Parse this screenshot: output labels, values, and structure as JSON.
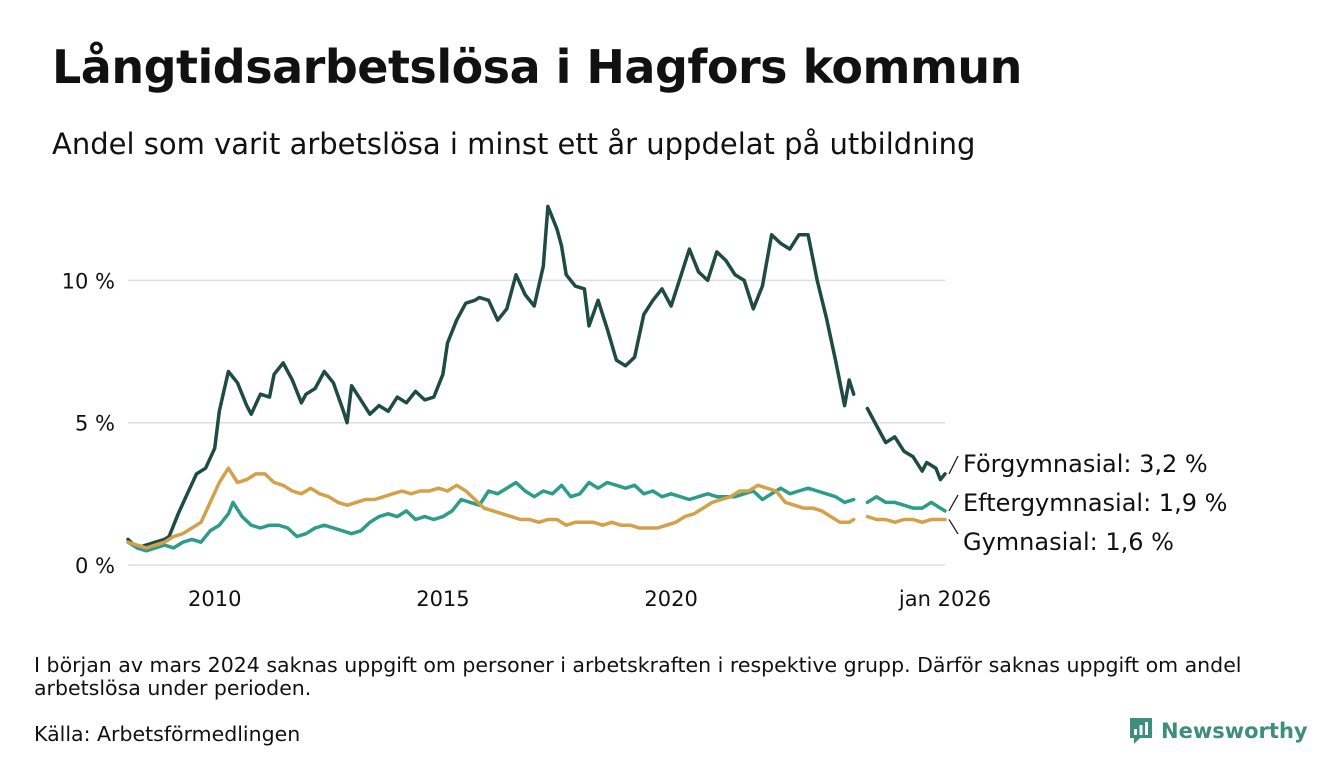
{
  "header": {
    "title": "Långtidsarbetslösa i Hagfors kommun",
    "subtitle": "Andel som varit arbetslösa i minst ett år uppdelat på utbildning"
  },
  "footer": {
    "note": "I början av mars 2024 saknas uppgift om personer i arbetskraften i respektive grupp. Därför saknas uppgift om andel arbetslösa under perioden.",
    "source": "Källa: Arbetsförmedlingen",
    "logo_text": "Newsworthy"
  },
  "chart_data": {
    "type": "line",
    "title": "Långtidsarbetslösa i Hagfors kommun",
    "subtitle": "Andel som varit arbetslösa i minst ett år uppdelat på utbildning",
    "xlabel": "",
    "ylabel": "",
    "xlim": [
      2008.1,
      2026.0
    ],
    "ylim": [
      0,
      13
    ],
    "yticks": [
      {
        "value": 0,
        "label": "0 %"
      },
      {
        "value": 5,
        "label": "5 %"
      },
      {
        "value": 10,
        "label": "10 %"
      }
    ],
    "xticks": [
      {
        "value": 2010,
        "label": "2010"
      },
      {
        "value": 2015,
        "label": "2015"
      },
      {
        "value": 2020,
        "label": "2020"
      },
      {
        "value": 2026.0,
        "label": "jan 2026"
      }
    ],
    "grid": true,
    "gap": {
      "from": 2024.0,
      "to": 2024.2
    },
    "series": [
      {
        "name": "Förgymnasial",
        "label": "Förgymnasial: 3,2 %",
        "color": "#1f4b45",
        "points": [
          [
            2008.1,
            0.9
          ],
          [
            2008.3,
            0.6
          ],
          [
            2008.5,
            0.7
          ],
          [
            2008.7,
            0.8
          ],
          [
            2008.9,
            0.9
          ],
          [
            2009.0,
            1.0
          ],
          [
            2009.2,
            1.8
          ],
          [
            2009.4,
            2.5
          ],
          [
            2009.6,
            3.2
          ],
          [
            2009.8,
            3.4
          ],
          [
            2010.0,
            4.1
          ],
          [
            2010.1,
            5.4
          ],
          [
            2010.2,
            6.1
          ],
          [
            2010.3,
            6.8
          ],
          [
            2010.5,
            6.4
          ],
          [
            2010.7,
            5.6
          ],
          [
            2010.8,
            5.3
          ],
          [
            2011.0,
            6.0
          ],
          [
            2011.2,
            5.9
          ],
          [
            2011.3,
            6.7
          ],
          [
            2011.5,
            7.1
          ],
          [
            2011.7,
            6.5
          ],
          [
            2011.9,
            5.7
          ],
          [
            2012.0,
            6.0
          ],
          [
            2012.2,
            6.2
          ],
          [
            2012.4,
            6.8
          ],
          [
            2012.6,
            6.4
          ],
          [
            2012.8,
            5.5
          ],
          [
            2012.9,
            5.0
          ],
          [
            2013.0,
            6.3
          ],
          [
            2013.2,
            5.8
          ],
          [
            2013.4,
            5.3
          ],
          [
            2013.6,
            5.6
          ],
          [
            2013.8,
            5.4
          ],
          [
            2014.0,
            5.9
          ],
          [
            2014.2,
            5.7
          ],
          [
            2014.4,
            6.1
          ],
          [
            2014.6,
            5.8
          ],
          [
            2014.8,
            5.9
          ],
          [
            2015.0,
            6.7
          ],
          [
            2015.1,
            7.8
          ],
          [
            2015.3,
            8.6
          ],
          [
            2015.5,
            9.2
          ],
          [
            2015.7,
            9.3
          ],
          [
            2015.8,
            9.4
          ],
          [
            2016.0,
            9.3
          ],
          [
            2016.2,
            8.6
          ],
          [
            2016.4,
            9.0
          ],
          [
            2016.6,
            10.2
          ],
          [
            2016.8,
            9.5
          ],
          [
            2017.0,
            9.1
          ],
          [
            2017.2,
            10.5
          ],
          [
            2017.3,
            12.6
          ],
          [
            2017.5,
            11.8
          ],
          [
            2017.6,
            11.2
          ],
          [
            2017.7,
            10.2
          ],
          [
            2017.9,
            9.8
          ],
          [
            2018.1,
            9.7
          ],
          [
            2018.2,
            8.4
          ],
          [
            2018.4,
            9.3
          ],
          [
            2018.6,
            8.3
          ],
          [
            2018.8,
            7.2
          ],
          [
            2019.0,
            7.0
          ],
          [
            2019.2,
            7.3
          ],
          [
            2019.4,
            8.8
          ],
          [
            2019.6,
            9.3
          ],
          [
            2019.8,
            9.7
          ],
          [
            2020.0,
            9.1
          ],
          [
            2020.2,
            10.1
          ],
          [
            2020.4,
            11.1
          ],
          [
            2020.6,
            10.3
          ],
          [
            2020.8,
            10.0
          ],
          [
            2021.0,
            11.0
          ],
          [
            2021.2,
            10.7
          ],
          [
            2021.4,
            10.2
          ],
          [
            2021.6,
            10.0
          ],
          [
            2021.8,
            9.0
          ],
          [
            2022.0,
            9.8
          ],
          [
            2022.2,
            11.6
          ],
          [
            2022.4,
            11.3
          ],
          [
            2022.6,
            11.1
          ],
          [
            2022.8,
            11.6
          ],
          [
            2023.0,
            11.6
          ],
          [
            2023.2,
            10.0
          ],
          [
            2023.4,
            8.7
          ],
          [
            2023.6,
            7.2
          ],
          [
            2023.8,
            5.6
          ],
          [
            2023.9,
            6.5
          ],
          [
            2024.0,
            6.0
          ],
          [
            2024.3,
            5.5
          ],
          [
            2024.5,
            4.9
          ],
          [
            2024.7,
            4.3
          ],
          [
            2024.9,
            4.5
          ],
          [
            2025.1,
            4.0
          ],
          [
            2025.3,
            3.8
          ],
          [
            2025.5,
            3.3
          ],
          [
            2025.6,
            3.6
          ],
          [
            2025.8,
            3.4
          ],
          [
            2025.9,
            3.0
          ],
          [
            2026.0,
            3.2
          ]
        ]
      },
      {
        "name": "Eftergymnasial",
        "label": "Eftergymnasial: 1,9 %",
        "color": "#2e9c8a",
        "points": [
          [
            2008.1,
            0.8
          ],
          [
            2008.3,
            0.6
          ],
          [
            2008.5,
            0.5
          ],
          [
            2008.7,
            0.6
          ],
          [
            2008.9,
            0.7
          ],
          [
            2009.1,
            0.6
          ],
          [
            2009.3,
            0.8
          ],
          [
            2009.5,
            0.9
          ],
          [
            2009.7,
            0.8
          ],
          [
            2009.9,
            1.2
          ],
          [
            2010.1,
            1.4
          ],
          [
            2010.3,
            1.8
          ],
          [
            2010.4,
            2.2
          ],
          [
            2010.6,
            1.7
          ],
          [
            2010.8,
            1.4
          ],
          [
            2011.0,
            1.3
          ],
          [
            2011.2,
            1.4
          ],
          [
            2011.4,
            1.4
          ],
          [
            2011.6,
            1.3
          ],
          [
            2011.8,
            1.0
          ],
          [
            2012.0,
            1.1
          ],
          [
            2012.2,
            1.3
          ],
          [
            2012.4,
            1.4
          ],
          [
            2012.6,
            1.3
          ],
          [
            2012.8,
            1.2
          ],
          [
            2013.0,
            1.1
          ],
          [
            2013.2,
            1.2
          ],
          [
            2013.4,
            1.5
          ],
          [
            2013.6,
            1.7
          ],
          [
            2013.8,
            1.8
          ],
          [
            2014.0,
            1.7
          ],
          [
            2014.2,
            1.9
          ],
          [
            2014.4,
            1.6
          ],
          [
            2014.6,
            1.7
          ],
          [
            2014.8,
            1.6
          ],
          [
            2015.0,
            1.7
          ],
          [
            2015.2,
            1.9
          ],
          [
            2015.4,
            2.3
          ],
          [
            2015.6,
            2.2
          ],
          [
            2015.8,
            2.1
          ],
          [
            2016.0,
            2.6
          ],
          [
            2016.2,
            2.5
          ],
          [
            2016.4,
            2.7
          ],
          [
            2016.6,
            2.9
          ],
          [
            2016.8,
            2.6
          ],
          [
            2017.0,
            2.4
          ],
          [
            2017.2,
            2.6
          ],
          [
            2017.4,
            2.5
          ],
          [
            2017.6,
            2.8
          ],
          [
            2017.8,
            2.4
          ],
          [
            2018.0,
            2.5
          ],
          [
            2018.2,
            2.9
          ],
          [
            2018.4,
            2.7
          ],
          [
            2018.6,
            2.9
          ],
          [
            2018.8,
            2.8
          ],
          [
            2019.0,
            2.7
          ],
          [
            2019.2,
            2.8
          ],
          [
            2019.4,
            2.5
          ],
          [
            2019.6,
            2.6
          ],
          [
            2019.8,
            2.4
          ],
          [
            2020.0,
            2.5
          ],
          [
            2020.2,
            2.4
          ],
          [
            2020.4,
            2.3
          ],
          [
            2020.6,
            2.4
          ],
          [
            2020.8,
            2.5
          ],
          [
            2021.0,
            2.4
          ],
          [
            2021.2,
            2.4
          ],
          [
            2021.4,
            2.4
          ],
          [
            2021.6,
            2.5
          ],
          [
            2021.8,
            2.6
          ],
          [
            2022.0,
            2.3
          ],
          [
            2022.2,
            2.5
          ],
          [
            2022.4,
            2.7
          ],
          [
            2022.6,
            2.5
          ],
          [
            2022.8,
            2.6
          ],
          [
            2023.0,
            2.7
          ],
          [
            2023.2,
            2.6
          ],
          [
            2023.4,
            2.5
          ],
          [
            2023.6,
            2.4
          ],
          [
            2023.8,
            2.2
          ],
          [
            2024.0,
            2.3
          ],
          [
            2024.3,
            2.2
          ],
          [
            2024.5,
            2.4
          ],
          [
            2024.7,
            2.2
          ],
          [
            2024.9,
            2.2
          ],
          [
            2025.1,
            2.1
          ],
          [
            2025.3,
            2.0
          ],
          [
            2025.5,
            2.0
          ],
          [
            2025.7,
            2.2
          ],
          [
            2025.9,
            2.0
          ],
          [
            2026.0,
            1.9
          ]
        ]
      },
      {
        "name": "Gymnasial",
        "label": "Gymnasial: 1,6 %",
        "color": "#d4a04a",
        "points": [
          [
            2008.1,
            0.8
          ],
          [
            2008.3,
            0.7
          ],
          [
            2008.5,
            0.6
          ],
          [
            2008.7,
            0.7
          ],
          [
            2008.9,
            0.8
          ],
          [
            2009.1,
            1.0
          ],
          [
            2009.3,
            1.1
          ],
          [
            2009.5,
            1.3
          ],
          [
            2009.7,
            1.5
          ],
          [
            2009.9,
            2.2
          ],
          [
            2010.1,
            2.9
          ],
          [
            2010.3,
            3.4
          ],
          [
            2010.5,
            2.9
          ],
          [
            2010.7,
            3.0
          ],
          [
            2010.9,
            3.2
          ],
          [
            2011.1,
            3.2
          ],
          [
            2011.3,
            2.9
          ],
          [
            2011.5,
            2.8
          ],
          [
            2011.7,
            2.6
          ],
          [
            2011.9,
            2.5
          ],
          [
            2012.1,
            2.7
          ],
          [
            2012.3,
            2.5
          ],
          [
            2012.5,
            2.4
          ],
          [
            2012.7,
            2.2
          ],
          [
            2012.9,
            2.1
          ],
          [
            2013.1,
            2.2
          ],
          [
            2013.3,
            2.3
          ],
          [
            2013.5,
            2.3
          ],
          [
            2013.7,
            2.4
          ],
          [
            2013.9,
            2.5
          ],
          [
            2014.1,
            2.6
          ],
          [
            2014.3,
            2.5
          ],
          [
            2014.5,
            2.6
          ],
          [
            2014.7,
            2.6
          ],
          [
            2014.9,
            2.7
          ],
          [
            2015.1,
            2.6
          ],
          [
            2015.3,
            2.8
          ],
          [
            2015.5,
            2.6
          ],
          [
            2015.7,
            2.3
          ],
          [
            2015.9,
            2.0
          ],
          [
            2016.1,
            1.9
          ],
          [
            2016.3,
            1.8
          ],
          [
            2016.5,
            1.7
          ],
          [
            2016.7,
            1.6
          ],
          [
            2016.9,
            1.6
          ],
          [
            2017.1,
            1.5
          ],
          [
            2017.3,
            1.6
          ],
          [
            2017.5,
            1.6
          ],
          [
            2017.7,
            1.4
          ],
          [
            2017.9,
            1.5
          ],
          [
            2018.1,
            1.5
          ],
          [
            2018.3,
            1.5
          ],
          [
            2018.5,
            1.4
          ],
          [
            2018.7,
            1.5
          ],
          [
            2018.9,
            1.4
          ],
          [
            2019.1,
            1.4
          ],
          [
            2019.3,
            1.3
          ],
          [
            2019.5,
            1.3
          ],
          [
            2019.7,
            1.3
          ],
          [
            2019.9,
            1.4
          ],
          [
            2020.1,
            1.5
          ],
          [
            2020.3,
            1.7
          ],
          [
            2020.5,
            1.8
          ],
          [
            2020.7,
            2.0
          ],
          [
            2020.9,
            2.2
          ],
          [
            2021.1,
            2.3
          ],
          [
            2021.3,
            2.4
          ],
          [
            2021.5,
            2.6
          ],
          [
            2021.7,
            2.6
          ],
          [
            2021.9,
            2.8
          ],
          [
            2022.1,
            2.7
          ],
          [
            2022.3,
            2.6
          ],
          [
            2022.5,
            2.2
          ],
          [
            2022.7,
            2.1
          ],
          [
            2022.9,
            2.0
          ],
          [
            2023.1,
            2.0
          ],
          [
            2023.3,
            1.9
          ],
          [
            2023.5,
            1.7
          ],
          [
            2023.7,
            1.5
          ],
          [
            2023.9,
            1.5
          ],
          [
            2024.0,
            1.6
          ],
          [
            2024.3,
            1.7
          ],
          [
            2024.5,
            1.6
          ],
          [
            2024.7,
            1.6
          ],
          [
            2024.9,
            1.5
          ],
          [
            2025.1,
            1.6
          ],
          [
            2025.3,
            1.6
          ],
          [
            2025.5,
            1.5
          ],
          [
            2025.7,
            1.6
          ],
          [
            2025.9,
            1.6
          ],
          [
            2026.0,
            1.6
          ]
        ]
      }
    ]
  }
}
